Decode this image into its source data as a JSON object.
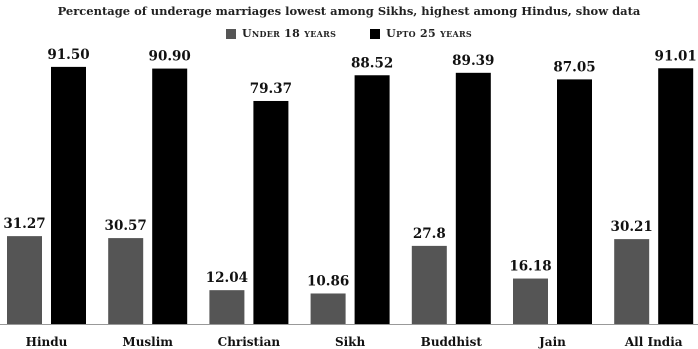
{
  "chart_data": {
    "type": "bar",
    "subtitle": "Percentage of underage marriages lowest among Sikhs, highest among Hindus, show data",
    "categories": [
      "Hindu",
      "Muslim",
      "Christian",
      "Sikh",
      "Buddhist",
      "Jain",
      "All India"
    ],
    "series": [
      {
        "name": "Under 18 years",
        "color": "#555555",
        "values": [
          31.27,
          30.57,
          12.04,
          10.86,
          27.8,
          16.18,
          30.21
        ],
        "labels": [
          "31.27",
          "30.57",
          "12.04",
          "10.86",
          "27.8",
          "16.18",
          "30.21"
        ]
      },
      {
        "name": "Upto 25 years",
        "color": "#000000",
        "values": [
          91.5,
          90.9,
          79.37,
          88.52,
          89.39,
          87.05,
          91.01
        ],
        "labels": [
          "91.50",
          "90.90",
          "79.37",
          "88.52",
          "89.39",
          "87.05",
          "91.01"
        ]
      }
    ],
    "ylim": [
      0,
      100
    ],
    "grid": false,
    "legend_position": "top-center"
  }
}
